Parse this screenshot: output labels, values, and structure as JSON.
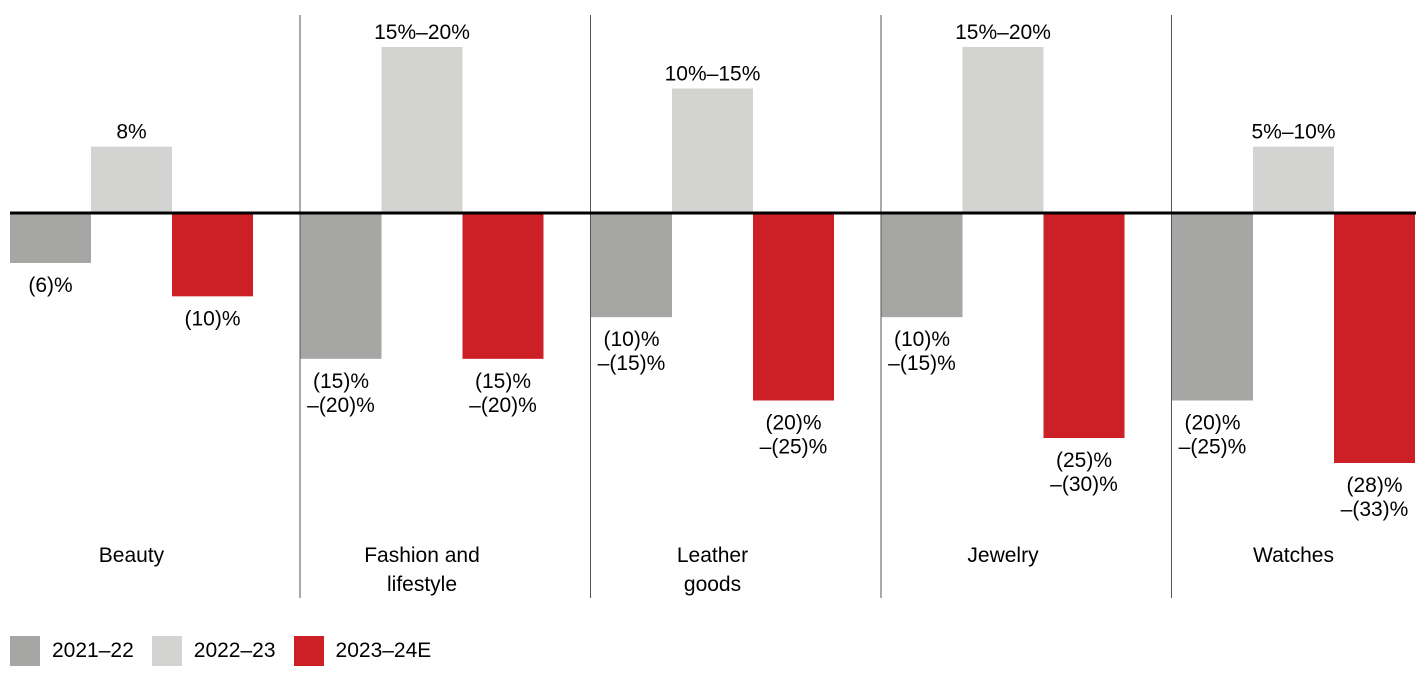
{
  "chart_data": {
    "type": "bar",
    "categories": [
      "Beauty",
      "Fashion and lifestyle",
      "Leather goods",
      "Jewelry",
      "Watches"
    ],
    "category_labels": [
      [
        "Beauty"
      ],
      [
        "Fashion and",
        "lifestyle"
      ],
      [
        "Leather",
        "goods"
      ],
      [
        "Jewelry"
      ],
      [
        "Watches"
      ]
    ],
    "series": [
      {
        "name": "2021–22",
        "color": "#a6a6a5",
        "values": [
          -6,
          -17.5,
          -12.5,
          -12.5,
          -22.5
        ],
        "labels": [
          [
            "(6)%"
          ],
          [
            "(15)%",
            "–(20)%"
          ],
          [
            "(10)%",
            "–(15)%"
          ],
          [
            "(10)%",
            "–(15)%"
          ],
          [
            "(20)%",
            "–(25)%"
          ]
        ]
      },
      {
        "name": "2022–23",
        "color": "#d3d3d2",
        "values": [
          8,
          20,
          15,
          20,
          8
        ],
        "labels": [
          [
            "8%"
          ],
          [
            "15%–20%"
          ],
          [
            "10%–15%"
          ],
          [
            "15%–20%"
          ],
          [
            "5%–10%"
          ]
        ]
      },
      {
        "name": "2023–24E",
        "color": "#cc1f26",
        "values": [
          -10,
          -17.5,
          -22.5,
          -27,
          -30
        ],
        "labels": [
          [
            "(10)%"
          ],
          [
            "(15)%",
            "–(20)%"
          ],
          [
            "(20)%",
            "–(25)%"
          ],
          [
            "(25)%",
            "–(30)%"
          ],
          [
            "(28)%",
            "–(33)%"
          ]
        ]
      }
    ],
    "title": "",
    "xlabel": "",
    "ylabel": "",
    "ylim": [
      -30,
      20
    ],
    "grid": false,
    "legend_position": "bottom-left"
  }
}
